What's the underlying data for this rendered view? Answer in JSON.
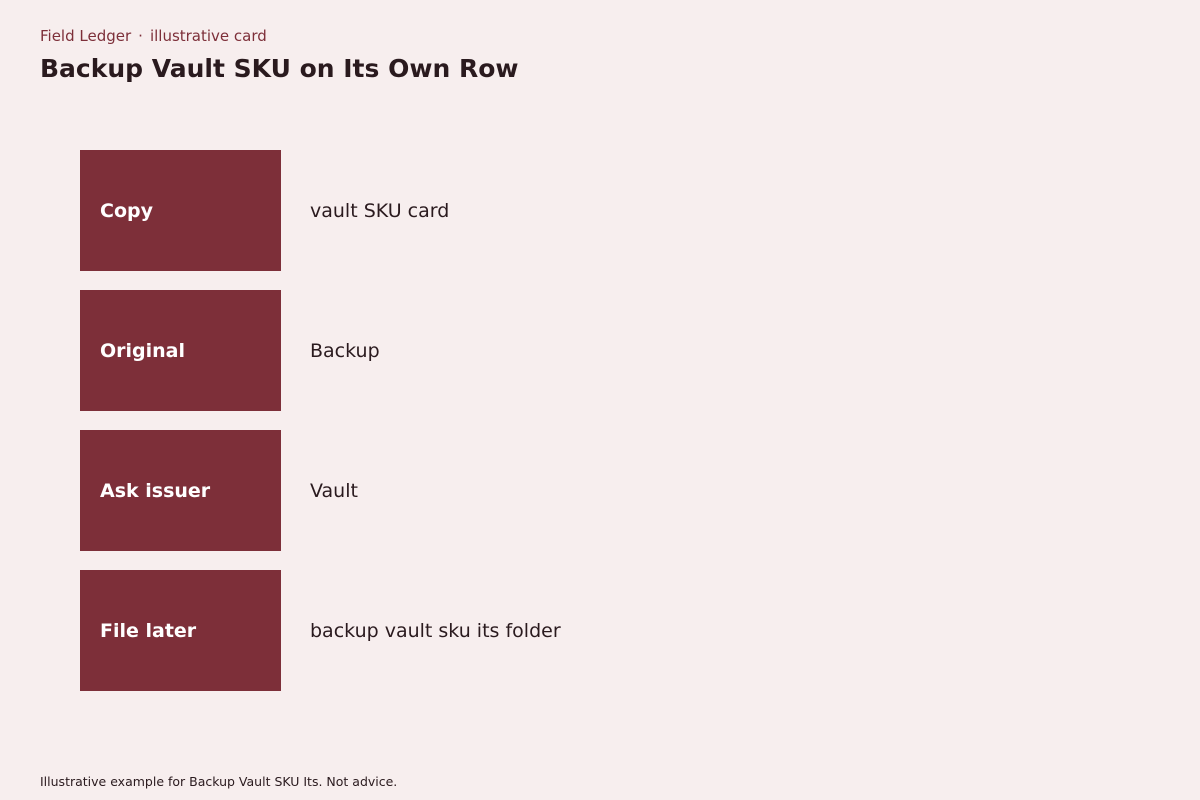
{
  "header": {
    "brand": "Field Ledger",
    "separator": "·",
    "kind": "illustrative card",
    "title": "Backup Vault SKU on Its Own Row"
  },
  "rows": [
    {
      "label": "Copy",
      "value": "vault SKU card"
    },
    {
      "label": "Original",
      "value": "Backup"
    },
    {
      "label": "Ask issuer",
      "value": "Vault"
    },
    {
      "label": "File later",
      "value": "backup vault sku its folder"
    }
  ],
  "footer": {
    "note": "Illustrative example for Backup Vault SKU Its. Not advice."
  },
  "colors": {
    "background": "#f7eeee",
    "accent": "#7d2f39",
    "text": "#2a1a1e"
  }
}
